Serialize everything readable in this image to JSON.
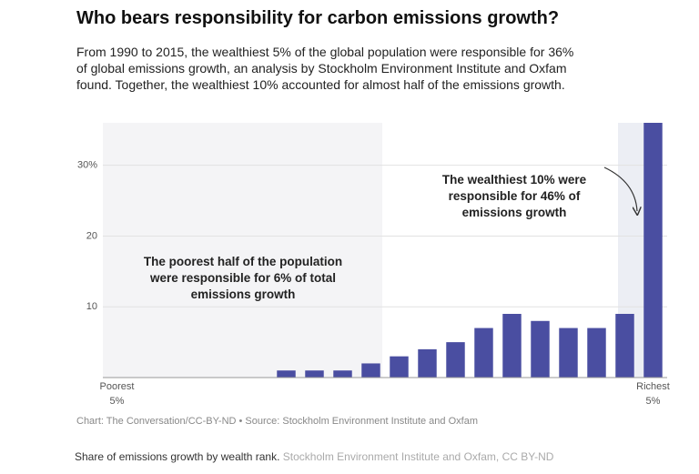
{
  "chart_data": {
    "type": "bar",
    "title": "Who bears responsibility for carbon emissions growth?",
    "subtitle": "From 1990 to 2015, the wealthiest 5% of the global population were responsible for 36% of global emissions growth, an analysis by Stockholm Environment Institute and Oxfam found. Together, the wealthiest 10% accounted for almost half of the emissions growth.",
    "categories": [
      "Poorest 5%",
      null,
      null,
      null,
      null,
      null,
      null,
      null,
      null,
      null,
      null,
      null,
      null,
      null,
      null,
      null,
      null,
      null,
      null,
      "Richest 5%"
    ],
    "values": [
      0,
      0,
      0,
      0,
      0,
      0,
      1,
      1,
      1,
      2,
      3,
      4,
      5,
      7,
      9,
      8,
      7,
      7,
      9,
      36
    ],
    "color": "#4a4ea1",
    "ylim": [
      0,
      36
    ],
    "yticks": [
      10,
      20,
      {
        "value": 30,
        "label": "30%"
      }
    ],
    "grid": true,
    "annotations": [
      "The poorest half of the population were responsible for 6% of total emissions growth",
      "The wealthiest 10% were responsible for 46% of emissions growth"
    ],
    "source": "Chart: The Conversation/CC-BY-ND • Source: Stockholm Environment Institute and Oxfam"
  },
  "caption": {
    "text": "Share of emissions growth by wealth rank.",
    "credit": "Stockholm Environment Institute and Oxfam, CC BY-ND"
  }
}
